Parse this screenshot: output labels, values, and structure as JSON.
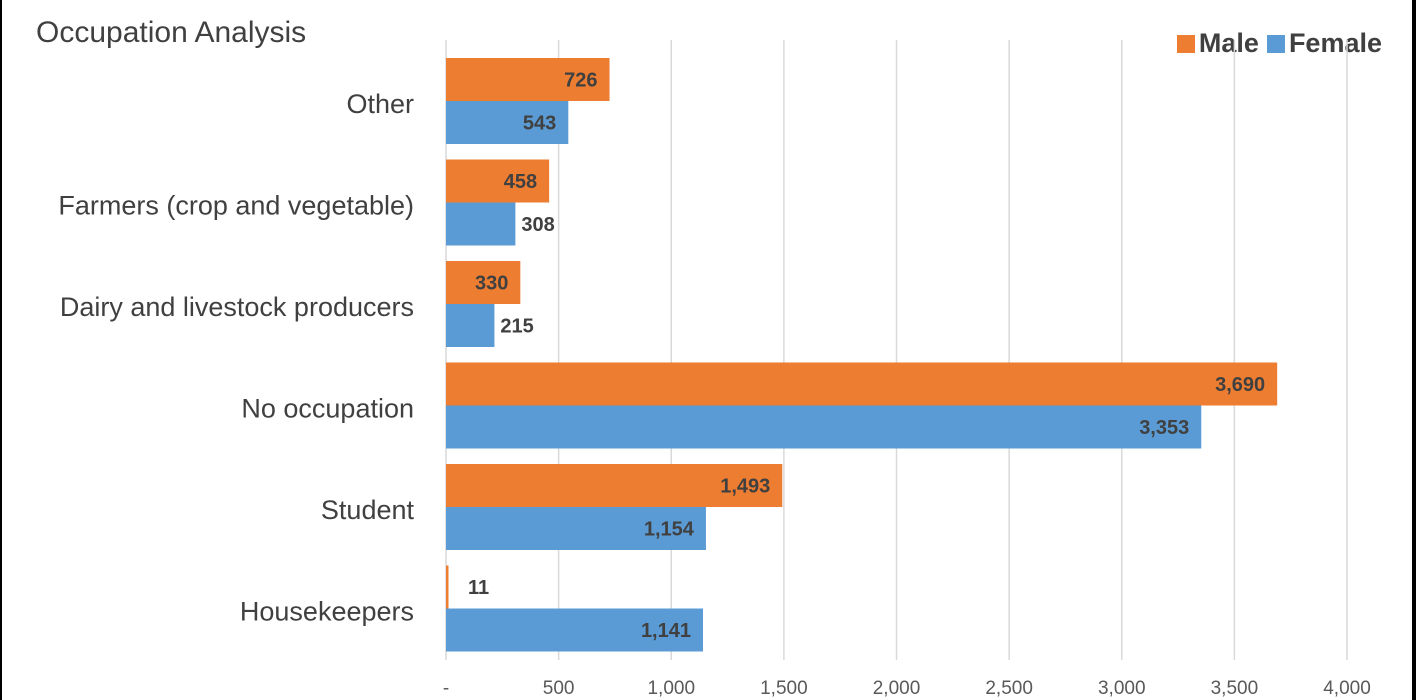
{
  "chart_data": {
    "type": "bar",
    "orientation": "horizontal",
    "title": "Occupation Analysis",
    "categories": [
      "Other",
      "Farmers (crop and vegetable)",
      "Dairy and livestock producers",
      "No occupation",
      "Student",
      "Housekeepers"
    ],
    "series": [
      {
        "name": "Male",
        "color": "#ED7D31",
        "values": [
          726,
          458,
          330,
          3690,
          1493,
          11
        ],
        "labels": [
          "726",
          "458",
          "330",
          "3,690",
          "1,493",
          "11"
        ]
      },
      {
        "name": "Female",
        "color": "#5B9BD5",
        "values": [
          543,
          308,
          215,
          3353,
          1154,
          1141
        ],
        "labels": [
          "543",
          "308",
          "215",
          "3,353",
          "1,154",
          "1,141"
        ]
      }
    ],
    "xlim": [
      0,
      4000
    ],
    "xticks": [
      0,
      500,
      1000,
      1500,
      2000,
      2500,
      3000,
      3500,
      4000
    ],
    "xtick_labels": [
      "-",
      "500",
      "1,000",
      "1,500",
      "2,000",
      "2,500",
      "3,000",
      "3,500",
      "4,000"
    ],
    "grid": true,
    "legend_position": "top-right"
  }
}
